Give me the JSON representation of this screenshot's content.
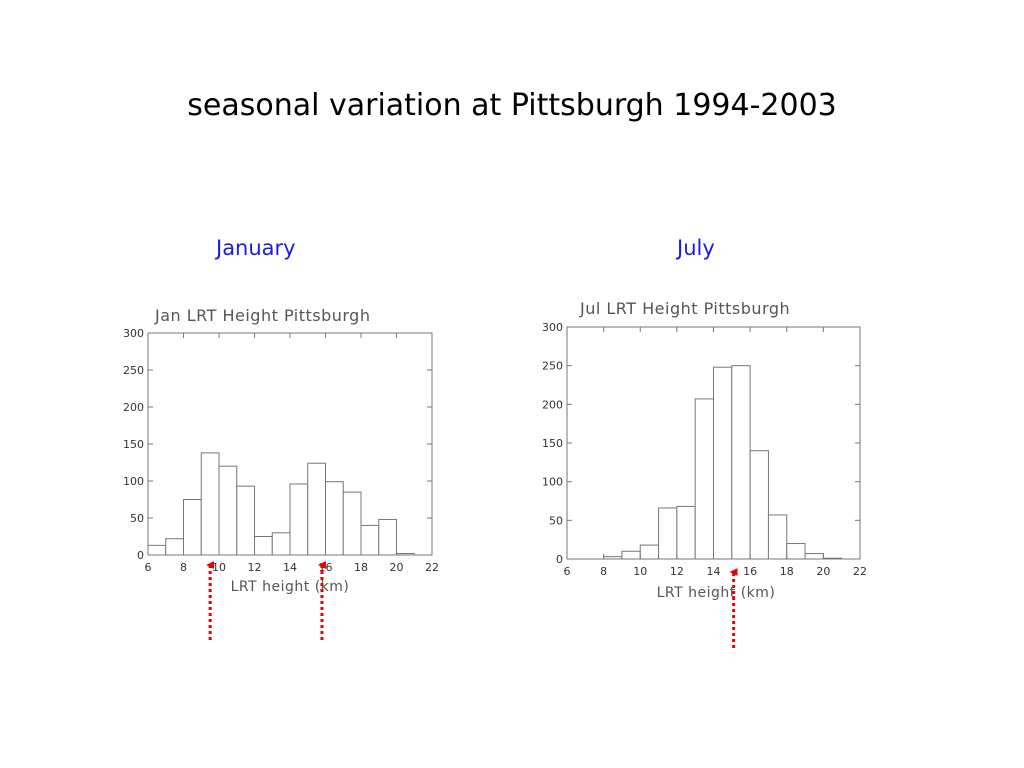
{
  "slide": {
    "title": "seasonal variation at Pittsburgh 1994-2003",
    "january_label": "January",
    "july_label": "July"
  },
  "colors": {
    "panel_label": "#1a1ae6",
    "arrow": "#e60000",
    "bar_edge": "#777777"
  },
  "chart_data": [
    {
      "type": "bar",
      "title": "Jan LRT  Height Pittsburgh",
      "xlabel": "LRT height (km)",
      "ylabel": "",
      "xlim": [
        6,
        22
      ],
      "ylim": [
        0,
        300
      ],
      "xticks": [
        6,
        8,
        10,
        12,
        14,
        16,
        18,
        20,
        22
      ],
      "yticks": [
        0,
        50,
        100,
        150,
        200,
        250,
        300
      ],
      "bin_width": 1,
      "bin_starts": [
        6,
        7,
        8,
        9,
        10,
        11,
        12,
        13,
        14,
        15,
        16,
        17,
        18,
        19,
        20,
        21
      ],
      "values": [
        13,
        22,
        75,
        138,
        120,
        93,
        25,
        30,
        96,
        124,
        99,
        85,
        40,
        48,
        2,
        0
      ],
      "grid": false,
      "markers_at_km": [
        9.5,
        15.8
      ]
    },
    {
      "type": "bar",
      "title": "Jul LRT  Height Pittsburgh",
      "xlabel": "LRT height (km)",
      "ylabel": "",
      "xlim": [
        6,
        22
      ],
      "ylim": [
        0,
        300
      ],
      "xticks": [
        6,
        8,
        10,
        12,
        14,
        16,
        18,
        20,
        22
      ],
      "yticks": [
        0,
        50,
        100,
        150,
        200,
        250,
        300
      ],
      "bin_width": 1,
      "bin_starts": [
        6,
        7,
        8,
        9,
        10,
        11,
        12,
        13,
        14,
        15,
        16,
        17,
        18,
        19,
        20,
        21
      ],
      "values": [
        0,
        0,
        3,
        10,
        18,
        66,
        68,
        207,
        248,
        250,
        140,
        57,
        20,
        7,
        1,
        0
      ],
      "grid": false,
      "markers_at_km": [
        15.1
      ]
    }
  ]
}
